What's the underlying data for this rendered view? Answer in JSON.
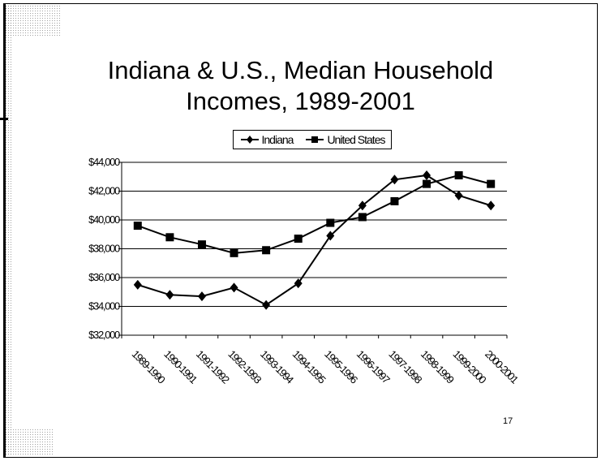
{
  "slide": {
    "title_line1": "Indiana & U.S., Median Household",
    "title_line2": "Incomes, 1989-2001",
    "page_number": "17"
  },
  "chart_data": {
    "type": "line",
    "categories": [
      "1989-1990",
      "1990-1991",
      "1991-1992",
      "1992-1993",
      "1993-1994",
      "1994-1995",
      "1995-1996",
      "1996-1997",
      "1997-1998",
      "1998-1999",
      "1999-2000",
      "2000-2001"
    ],
    "series": [
      {
        "name": "Indiana",
        "marker": "diamond",
        "color": "#000000",
        "values": [
          35500,
          34800,
          34700,
          35300,
          34100,
          35600,
          38900,
          41000,
          42800,
          43100,
          41700,
          41000
        ]
      },
      {
        "name": "United States",
        "marker": "square",
        "color": "#000000",
        "values": [
          39600,
          38800,
          38300,
          37700,
          37900,
          38700,
          39800,
          40200,
          41300,
          42500,
          43100,
          42500
        ]
      }
    ],
    "ylim": [
      32000,
      44000
    ],
    "yticks": [
      "$32,000",
      "$34,000",
      "$36,000",
      "$38,000",
      "$40,000",
      "$42,000",
      "$44,000"
    ],
    "grid": true,
    "legend_position": "top"
  }
}
